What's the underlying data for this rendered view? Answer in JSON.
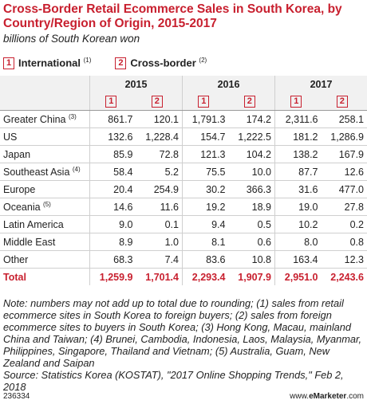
{
  "header": {
    "title": "Cross-Border Retail Ecommerce Sales in South Korea, by Country/Region of Origin, 2015-2017",
    "subtitle": "billions of South Korean won"
  },
  "legend": [
    {
      "number": "1",
      "label": "International",
      "note": "(1)"
    },
    {
      "number": "2",
      "label": "Cross-border",
      "note": "(2)"
    }
  ],
  "table": {
    "years": [
      "2015",
      "2016",
      "2017"
    ],
    "rows": [
      {
        "label": "Greater China",
        "note": "(3)",
        "values": [
          "861.7",
          "120.1",
          "1,791.3",
          "174.2",
          "2,311.6",
          "258.1"
        ]
      },
      {
        "label": "US",
        "note": null,
        "values": [
          "132.6",
          "1,228.4",
          "154.7",
          "1,222.5",
          "181.2",
          "1,286.9"
        ]
      },
      {
        "label": "Japan",
        "note": null,
        "values": [
          "85.9",
          "72.8",
          "121.3",
          "104.2",
          "138.2",
          "167.9"
        ]
      },
      {
        "label": "Southeast Asia",
        "note": "(4)",
        "values": [
          "58.4",
          "5.2",
          "75.5",
          "10.0",
          "87.7",
          "12.6"
        ]
      },
      {
        "label": "Europe",
        "note": null,
        "values": [
          "20.4",
          "254.9",
          "30.2",
          "366.3",
          "31.6",
          "477.0"
        ]
      },
      {
        "label": "Oceania",
        "note": "(5)",
        "values": [
          "14.6",
          "11.6",
          "19.2",
          "18.9",
          "19.0",
          "27.8"
        ]
      },
      {
        "label": "Latin America",
        "note": null,
        "values": [
          "9.0",
          "0.1",
          "9.4",
          "0.5",
          "10.2",
          "0.2"
        ]
      },
      {
        "label": "Middle East",
        "note": null,
        "values": [
          "8.9",
          "1.0",
          "8.1",
          "0.6",
          "8.0",
          "0.8"
        ]
      },
      {
        "label": "Other",
        "note": null,
        "values": [
          "68.3",
          "7.4",
          "83.6",
          "10.8",
          "163.4",
          "12.3"
        ]
      },
      {
        "label": "Total",
        "note": null,
        "values": [
          "1,259.9",
          "1,701.4",
          "2,293.4",
          "1,907.9",
          "2,951.0",
          "2,243.6"
        ]
      }
    ]
  },
  "notes": "Note: numbers may not add up to total due to rounding; (1) sales from retail ecommerce sites in South Korea to foreign buyers; (2) sales from foreign ecommerce sites to buyers in South Korea; (3) Hong Kong, Macau, mainland China and Taiwan; (4) Brunei, Cambodia, Indonesia, Laos, Malaysia, Myanmar, Philippines, Singapore, Thailand and Vietnam; (5) Australia, Guam, New Zealand and Saipan",
  "source": "Source: Statistics Korea (KOSTAT), \"2017 Online Shopping Trends,\" Feb 2, 2018",
  "footer": {
    "id": "236334",
    "brand_prefix": "www.",
    "brand": "eMarketer",
    "brand_suffix": ".com"
  }
}
